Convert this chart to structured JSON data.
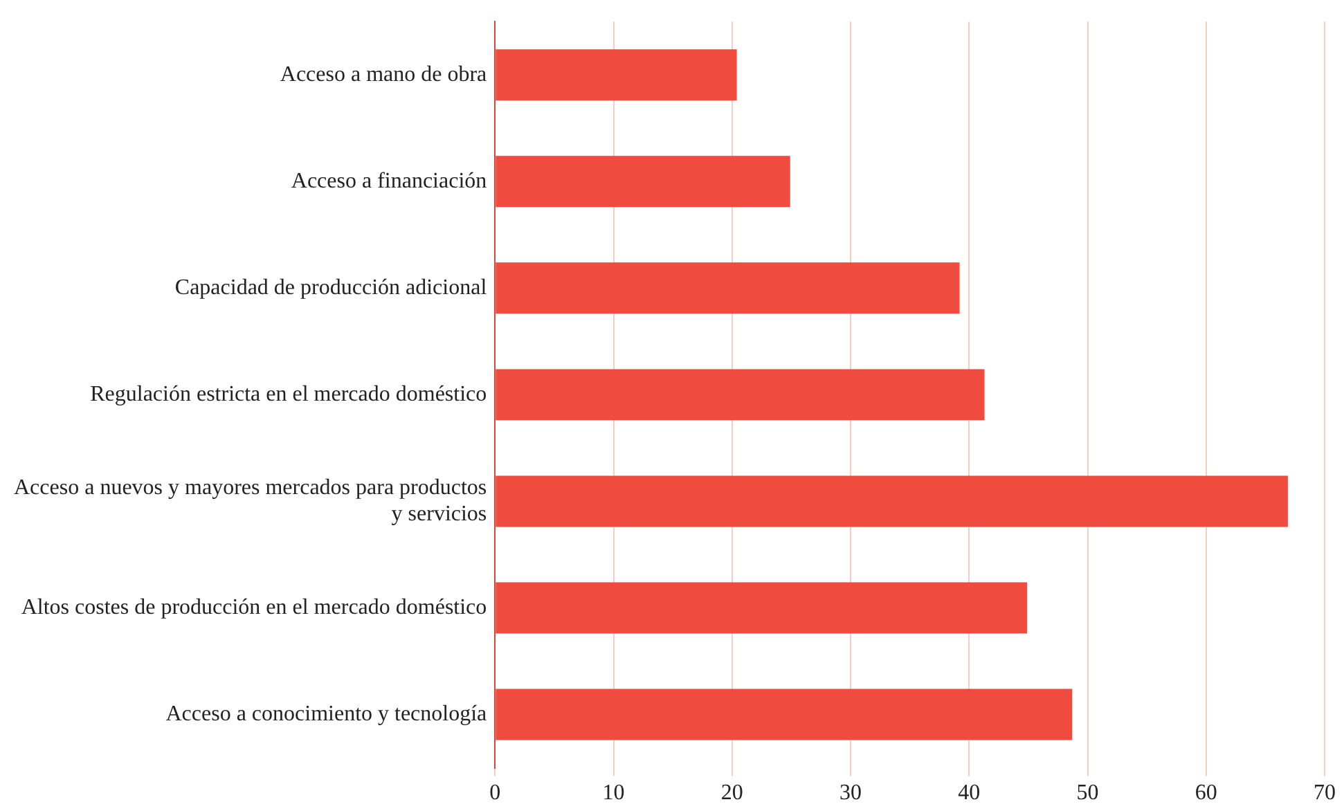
{
  "chart_data": {
    "type": "bar",
    "orientation": "horizontal",
    "categories": [
      "Acceso a mano de obra",
      "Acceso a financiación",
      "Capacidad de producción adicional",
      "Regulación estricta en el mercado doméstico",
      "Acceso a nuevos y mayores mercados para productos y servicios",
      "Altos costes de producción en el mercado doméstico",
      "Acceso a conocimiento y tecnología"
    ],
    "values": [
      20.4,
      24.9,
      39.2,
      41.3,
      66.9,
      44.9,
      48.7
    ],
    "color": "#ef4b3f",
    "xlim": [
      0,
      70
    ],
    "xticks": [
      0,
      10,
      20,
      30,
      40,
      50,
      60,
      70
    ],
    "grid": "x",
    "legend": false
  }
}
